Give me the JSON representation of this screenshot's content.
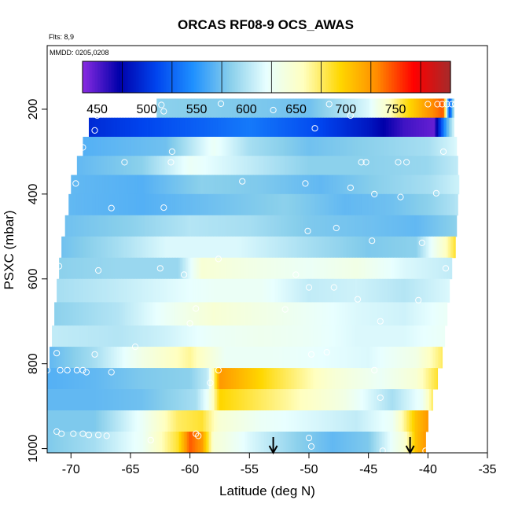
{
  "chart_data": {
    "type": "heatmap",
    "title": "ORCAS RF08-9 OCS_AWAS",
    "flights_note": "Flts: 8,9",
    "date_note": "MMDD: 0205,0208",
    "xlabel": "Latitude (deg N)",
    "ylabel": "PSXC (mbar)",
    "xlim": [
      -72,
      -35
    ],
    "ylim": [
      1010,
      50
    ],
    "y_reversed": true,
    "x_ticks": [
      -70,
      -65,
      -60,
      -55,
      -50,
      -45,
      -40,
      -35
    ],
    "x_tick_labels": [
      "-70",
      "-65",
      "-60",
      "-55",
      "-50",
      "-45",
      "-40",
      "-35"
    ],
    "y_ticks": [
      200,
      400,
      600,
      800,
      1000
    ],
    "y_tick_labels": [
      "200",
      "400",
      "600",
      "800",
      "1000"
    ],
    "colorbar": {
      "range": [
        410,
        780
      ],
      "ticks": [
        450,
        500,
        550,
        600,
        650,
        700,
        750
      ],
      "tick_labels": [
        "450",
        "500",
        "550",
        "600",
        "650",
        "700",
        "750"
      ],
      "colors": [
        "#8a2be2",
        "#0000aa",
        "#0044ee",
        "#1e90ff",
        "#87ceeb",
        "#e8ffff",
        "#ffffc0",
        "#ffd700",
        "#ff8c00",
        "#ff0000",
        "#a52a2a"
      ]
    },
    "layers": [
      {
        "p_top": 175,
        "p_bot": 220,
        "lat_start": -62.8,
        "lat_end": -37.8,
        "values": [
          [
            -62.8,
            560
          ],
          [
            -55,
            555
          ],
          [
            -50,
            550
          ],
          [
            -45,
            590
          ],
          [
            -42,
            660
          ],
          [
            -40,
            700
          ],
          [
            -38.7,
            720
          ],
          [
            -38.2,
            480
          ],
          [
            -37.8,
            580
          ]
        ]
      },
      {
        "p_top": 220,
        "p_bot": 265,
        "lat_start": -68.5,
        "lat_end": -37.8,
        "values": [
          [
            -68.5,
            470
          ],
          [
            -62,
            490
          ],
          [
            -55,
            510
          ],
          [
            -50,
            490
          ],
          [
            -45,
            460
          ],
          [
            -42,
            430
          ],
          [
            -39.5,
            420
          ],
          [
            -38.5,
            530
          ],
          [
            -37.8,
            590
          ]
        ]
      },
      {
        "p_top": 265,
        "p_bot": 310,
        "lat_start": -69.0,
        "lat_end": -37.6,
        "values": [
          [
            -69,
            540
          ],
          [
            -62,
            550
          ],
          [
            -58,
            600
          ],
          [
            -55,
            570
          ],
          [
            -50,
            550
          ],
          [
            -45,
            560
          ],
          [
            -40,
            570
          ],
          [
            -37.6,
            590
          ]
        ]
      },
      {
        "p_top": 310,
        "p_bot": 355,
        "lat_start": -69.5,
        "lat_end": -37.5,
        "values": [
          [
            -69.5,
            545
          ],
          [
            -64,
            560
          ],
          [
            -60,
            600
          ],
          [
            -55,
            580
          ],
          [
            -50,
            560
          ],
          [
            -45,
            560
          ],
          [
            -40,
            565
          ],
          [
            -37.5,
            580
          ]
        ]
      },
      {
        "p_top": 355,
        "p_bot": 400,
        "lat_start": -70.0,
        "lat_end": -37.4,
        "values": [
          [
            -70,
            545
          ],
          [
            -64,
            540
          ],
          [
            -59,
            560
          ],
          [
            -54,
            555
          ],
          [
            -49,
            545
          ],
          [
            -44,
            560
          ],
          [
            -40,
            570
          ],
          [
            -37.4,
            585
          ]
        ]
      },
      {
        "p_top": 400,
        "p_bot": 450,
        "lat_start": -70.2,
        "lat_end": -37.5,
        "values": [
          [
            -70.2,
            545
          ],
          [
            -64,
            540
          ],
          [
            -58,
            550
          ],
          [
            -52,
            560
          ],
          [
            -47,
            545
          ],
          [
            -43,
            550
          ],
          [
            -40,
            560
          ],
          [
            -37.5,
            575
          ]
        ]
      },
      {
        "p_top": 450,
        "p_bot": 500,
        "lat_start": -70.5,
        "lat_end": -37.6,
        "values": [
          [
            -70.5,
            550
          ],
          [
            -65,
            560
          ],
          [
            -60,
            575
          ],
          [
            -55,
            570
          ],
          [
            -50,
            555
          ],
          [
            -45,
            550
          ],
          [
            -41,
            545
          ],
          [
            -37.6,
            560
          ]
        ]
      },
      {
        "p_top": 500,
        "p_bot": 550,
        "lat_start": -70.8,
        "lat_end": -37.7,
        "values": [
          [
            -70.8,
            550
          ],
          [
            -66,
            570
          ],
          [
            -62,
            590
          ],
          [
            -56,
            590
          ],
          [
            -50,
            570
          ],
          [
            -45,
            555
          ],
          [
            -41,
            560
          ],
          [
            -38.5,
            630
          ],
          [
            -37.7,
            660
          ]
        ]
      },
      {
        "p_top": 550,
        "p_bot": 600,
        "lat_start": -71.0,
        "lat_end": -38.0,
        "values": [
          [
            -71,
            560
          ],
          [
            -66,
            565
          ],
          [
            -61,
            565
          ],
          [
            -59,
            620
          ],
          [
            -55,
            610
          ],
          [
            -50,
            600
          ],
          [
            -46,
            610
          ],
          [
            -42,
            590
          ],
          [
            -38,
            580
          ]
        ]
      },
      {
        "p_top": 600,
        "p_bot": 655,
        "lat_start": -71.2,
        "lat_end": -38.2,
        "values": [
          [
            -71.2,
            570
          ],
          [
            -66,
            580
          ],
          [
            -62,
            590
          ],
          [
            -58,
            600
          ],
          [
            -54,
            600
          ],
          [
            -50,
            580
          ],
          [
            -46,
            585
          ],
          [
            -42,
            575
          ],
          [
            -38.2,
            590
          ]
        ]
      },
      {
        "p_top": 655,
        "p_bot": 710,
        "lat_start": -71.4,
        "lat_end": -38.4,
        "values": [
          [
            -71.4,
            560
          ],
          [
            -66,
            575
          ],
          [
            -62,
            600
          ],
          [
            -58,
            620
          ],
          [
            -54,
            610
          ],
          [
            -50,
            600
          ],
          [
            -46,
            590
          ],
          [
            -42,
            585
          ],
          [
            -38.4,
            600
          ]
        ]
      },
      {
        "p_top": 710,
        "p_bot": 760,
        "lat_start": -71.6,
        "lat_end": -38.6,
        "values": [
          [
            -71.6,
            580
          ],
          [
            -66,
            575
          ],
          [
            -62,
            585
          ],
          [
            -58,
            600
          ],
          [
            -54,
            605
          ],
          [
            -50,
            600
          ],
          [
            -46,
            590
          ],
          [
            -42,
            590
          ],
          [
            -38.6,
            600
          ]
        ]
      },
      {
        "p_top": 760,
        "p_bot": 810,
        "lat_start": -71.8,
        "lat_end": -38.8,
        "values": [
          [
            -71.8,
            545
          ],
          [
            -68,
            570
          ],
          [
            -64,
            610
          ],
          [
            -60,
            640
          ],
          [
            -57,
            600
          ],
          [
            -53,
            600
          ],
          [
            -49,
            595
          ],
          [
            -45,
            590
          ],
          [
            -41,
            610
          ],
          [
            -38.8,
            650
          ]
        ]
      },
      {
        "p_top": 810,
        "p_bot": 860,
        "lat_start": -72.0,
        "lat_end": -39.2,
        "values": [
          [
            -72,
            540
          ],
          [
            -68,
            545
          ],
          [
            -64,
            555
          ],
          [
            -60,
            560
          ],
          [
            -58.5,
            580
          ],
          [
            -57.5,
            700
          ],
          [
            -53,
            660
          ],
          [
            -48,
            620
          ],
          [
            -44,
            600
          ],
          [
            -41,
            620
          ],
          [
            -39.2,
            660
          ]
        ]
      },
      {
        "p_top": 860,
        "p_bot": 910,
        "lat_start": -72.0,
        "lat_end": -39.6,
        "values": [
          [
            -72,
            545
          ],
          [
            -68,
            545
          ],
          [
            -64,
            550
          ],
          [
            -59.5,
            570
          ],
          [
            -58.5,
            600
          ],
          [
            -57.5,
            670
          ],
          [
            -52,
            640
          ],
          [
            -47,
            610
          ],
          [
            -43,
            570
          ],
          [
            -40.5,
            600
          ],
          [
            -39.6,
            650
          ]
        ]
      },
      {
        "p_top": 910,
        "p_bot": 960,
        "lat_start": -72.0,
        "lat_end": -40.0,
        "values": [
          [
            -72,
            555
          ],
          [
            -68,
            555
          ],
          [
            -64,
            600
          ],
          [
            -61,
            650
          ],
          [
            -59,
            660
          ],
          [
            -57.5,
            620
          ],
          [
            -54,
            600
          ],
          [
            -50,
            590
          ],
          [
            -46,
            580
          ],
          [
            -43,
            600
          ],
          [
            -41,
            680
          ],
          [
            -40,
            700
          ]
        ]
      },
      {
        "p_top": 960,
        "p_bot": 1010,
        "lat_start": -72.0,
        "lat_end": -40.2,
        "values": [
          [
            -72,
            555
          ],
          [
            -68,
            570
          ],
          [
            -64,
            600
          ],
          [
            -61,
            660
          ],
          [
            -60,
            720
          ],
          [
            -59,
            700
          ],
          [
            -58,
            620
          ],
          [
            -55,
            590
          ],
          [
            -51,
            560
          ],
          [
            -48,
            545
          ],
          [
            -45,
            555
          ],
          [
            -42,
            620
          ],
          [
            -41,
            680
          ],
          [
            -40.2,
            700
          ]
        ]
      }
    ],
    "sample_points": [
      [
        -62.4,
        190
      ],
      [
        -57.4,
        187
      ],
      [
        -53,
        202
      ],
      [
        -48.3,
        188
      ],
      [
        -40,
        188
      ],
      [
        -39.2,
        188
      ],
      [
        -38.8,
        188
      ],
      [
        -38.4,
        188
      ],
      [
        -38,
        188
      ],
      [
        -37.7,
        188
      ],
      [
        -62.2,
        205
      ],
      [
        -67.8,
        215
      ],
      [
        -46.5,
        215
      ],
      [
        -68,
        250
      ],
      [
        -49.5,
        245
      ],
      [
        -61.5,
        300
      ],
      [
        -69,
        290
      ],
      [
        -65.5,
        325
      ],
      [
        -61.6,
        325
      ],
      [
        -45.2,
        325
      ],
      [
        -45.6,
        325
      ],
      [
        -42.5,
        325
      ],
      [
        -41.8,
        325
      ],
      [
        -38.7,
        300
      ],
      [
        -69.6,
        375
      ],
      [
        -55.6,
        370
      ],
      [
        -50.3,
        375
      ],
      [
        -46.5,
        385
      ],
      [
        -44.5,
        400
      ],
      [
        -42.3,
        407
      ],
      [
        -39.3,
        398
      ],
      [
        -66.6,
        433
      ],
      [
        -62.2,
        432
      ],
      [
        -50.1,
        487
      ],
      [
        -47.7,
        480
      ],
      [
        -44.7,
        510
      ],
      [
        -40.5,
        515
      ],
      [
        -57.6,
        553
      ],
      [
        -71,
        570
      ],
      [
        -67.7,
        580
      ],
      [
        -62.5,
        575
      ],
      [
        -60.5,
        590
      ],
      [
        -51.1,
        590
      ],
      [
        -38.5,
        575
      ],
      [
        -50,
        620
      ],
      [
        -47.9,
        620
      ],
      [
        -45.9,
        648
      ],
      [
        -40.8,
        650
      ],
      [
        -59.5,
        670
      ],
      [
        -52,
        672
      ],
      [
        -44,
        700
      ],
      [
        -60,
        705
      ],
      [
        -64.6,
        760
      ],
      [
        -71.2,
        775
      ],
      [
        -68,
        778
      ],
      [
        -49.8,
        778
      ],
      [
        -48.5,
        773
      ],
      [
        -72,
        815
      ],
      [
        -70.9,
        815
      ],
      [
        -70.3,
        815
      ],
      [
        -69.5,
        815
      ],
      [
        -69,
        815
      ],
      [
        -68.7,
        820
      ],
      [
        -66.6,
        820
      ],
      [
        -57.6,
        815
      ],
      [
        -44.5,
        815
      ],
      [
        -58.3,
        845
      ],
      [
        -44,
        880
      ],
      [
        -71.2,
        960
      ],
      [
        -70.8,
        965
      ],
      [
        -69.8,
        965
      ],
      [
        -69,
        965
      ],
      [
        -68.5,
        968
      ],
      [
        -67.7,
        968
      ],
      [
        -67,
        970
      ],
      [
        -59.5,
        965
      ],
      [
        -59.3,
        970
      ],
      [
        -63.3,
        980
      ],
      [
        -50,
        975
      ],
      [
        -49.8,
        995
      ],
      [
        -43.8,
        1005
      ],
      [
        -40.2,
        1005
      ]
    ],
    "markers_lat": [
      -53.0,
      -41.5
    ]
  }
}
